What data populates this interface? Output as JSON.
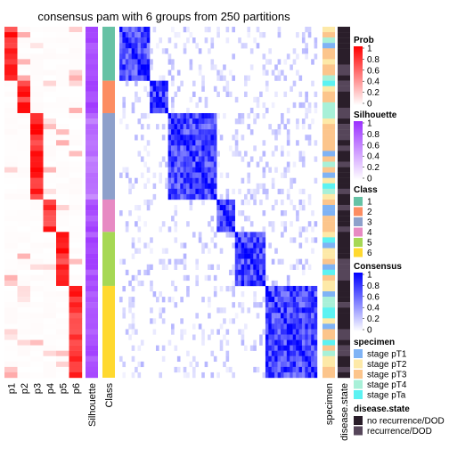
{
  "chart_data": {
    "type": "heatmap",
    "title": "consensus pam with 6 groups from 250 partitions",
    "column_labels": [
      "p1",
      "p2",
      "p3",
      "p4",
      "p5",
      "p6",
      "Silhouette",
      "Class"
    ],
    "side_labels": [
      "specimen",
      "disease.state"
    ],
    "class_groups": [
      {
        "class": 1,
        "rows": 10
      },
      {
        "class": 2,
        "rows": 6
      },
      {
        "class": 3,
        "rows": 16
      },
      {
        "class": 4,
        "rows": 6
      },
      {
        "class": 5,
        "rows": 10
      },
      {
        "class": 6,
        "rows": 17
      }
    ],
    "legends": [
      {
        "title": "Prob",
        "type": "gradient",
        "ticks": [
          "1",
          "0.8",
          "0.6",
          "0.4",
          "0.2",
          "0"
        ],
        "colors": [
          "#ff0000",
          "#ffffff"
        ]
      },
      {
        "title": "Silhouette",
        "type": "gradient",
        "ticks": [
          "1",
          "0.8",
          "0.6",
          "0.4",
          "0.2",
          "0"
        ],
        "colors": [
          "#9b30ff",
          "#ffffff"
        ]
      },
      {
        "title": "Class",
        "type": "discrete",
        "entries": [
          "1",
          "2",
          "3",
          "4",
          "5",
          "6"
        ],
        "colors": [
          "#66c2a5",
          "#fc8d62",
          "#8da0cb",
          "#e78ac3",
          "#a6d854",
          "#ffd92f"
        ]
      },
      {
        "title": "Consensus",
        "type": "gradient",
        "ticks": [
          "1",
          "0.8",
          "0.6",
          "0.4",
          "0.2",
          "0"
        ],
        "colors": [
          "#0000ff",
          "#ffffff"
        ]
      },
      {
        "title": "specimen",
        "type": "discrete",
        "entries": [
          "stage pT1",
          "stage pT2",
          "stage pT3",
          "stage pT4",
          "stage pTa"
        ],
        "colors": [
          "#7fb3f5",
          "#fde9a8",
          "#fcc58c",
          "#a8f0d8",
          "#5cf2f2"
        ]
      },
      {
        "title": "disease.state",
        "type": "discrete",
        "entries": [
          "no recurrence/DOD",
          "recurrence/DOD"
        ],
        "colors": [
          "#2a1e2a",
          "#56465a"
        ]
      }
    ]
  }
}
